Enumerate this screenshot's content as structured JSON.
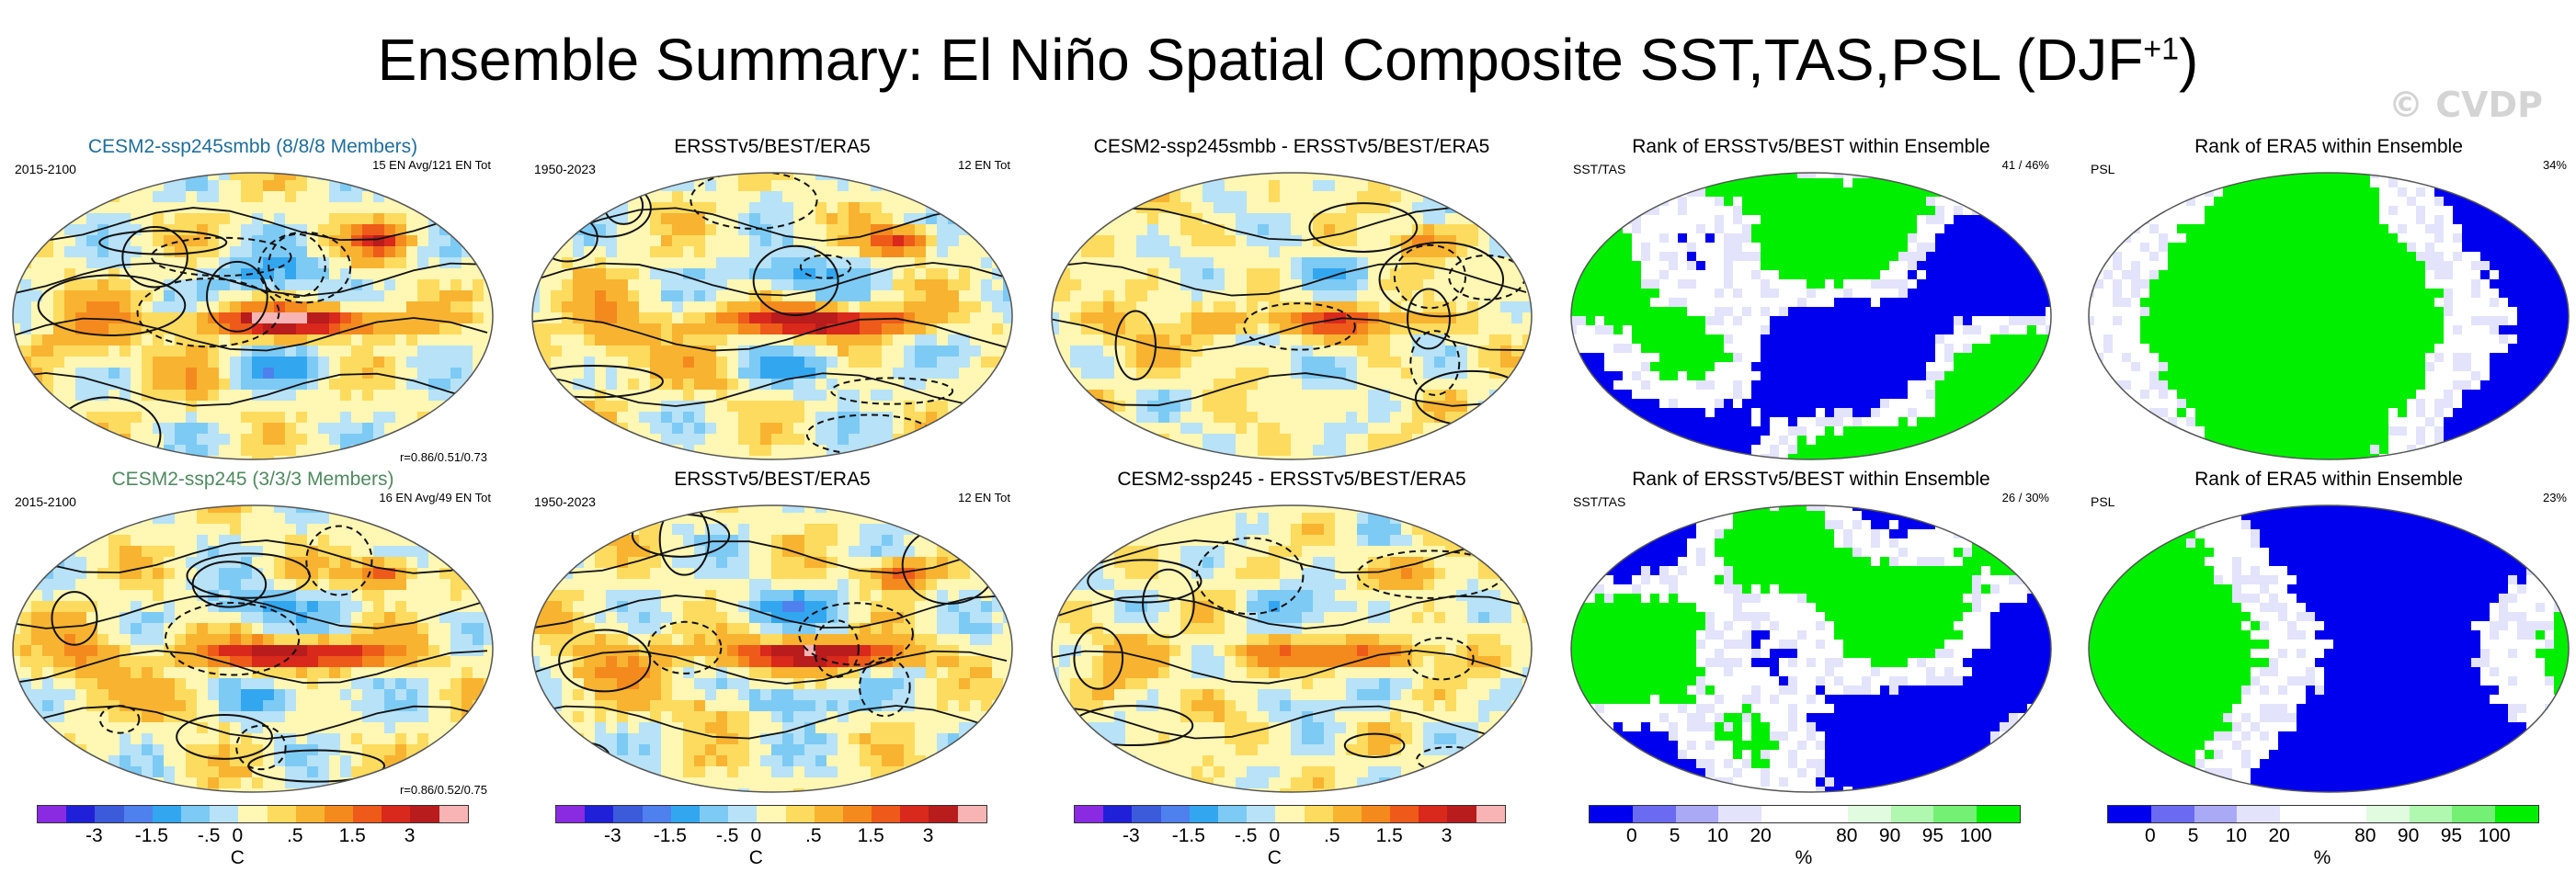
{
  "title_main": "Ensemble Summary: El Niño Spatial Composite SST,TAS,PSL (DJF",
  "title_sup": "+1",
  "title_end": ")",
  "watermark": "© CVDP",
  "panels": [
    {
      "title": "CESM2-ssp245smbb (8/8/8 Members)",
      "title_color": "#1f6e9c",
      "left": "2015-2100",
      "right": "15 EN Avg/121 EN Tot",
      "corr": "r=0.86/0.51/0.73",
      "type": "sst",
      "pal_seed": 1
    },
    {
      "title": "ERSSTv5/BEST/ERA5",
      "title_color": "#000000",
      "left": "1950-2023",
      "right": "12 EN Tot",
      "corr": "",
      "type": "sst",
      "pal_seed": 2
    },
    {
      "title": "CESM2-ssp245smbb - ERSSTv5/BEST/ERA5",
      "title_color": "#000000",
      "left": "",
      "right": "",
      "corr": "",
      "type": "diff",
      "pal_seed": 3
    },
    {
      "title": "Rank of ERSSTv5/BEST within Ensemble",
      "title_color": "#000000",
      "left": "SST/TAS",
      "right": "41 /  46%",
      "corr": "",
      "type": "rank",
      "pal_seed": 4
    },
    {
      "title": "Rank of ERA5 within Ensemble",
      "title_color": "#000000",
      "left": "PSL",
      "right": "34%",
      "corr": "",
      "type": "rankpsl",
      "pal_seed": 5
    },
    {
      "title": "CESM2-ssp245 (3/3/3 Members)",
      "title_color": "#4f8a5f",
      "left": "2015-2100",
      "right": "16 EN Avg/49 EN Tot",
      "corr": "r=0.86/0.52/0.75",
      "type": "sst",
      "pal_seed": 6
    },
    {
      "title": "ERSSTv5/BEST/ERA5",
      "title_color": "#000000",
      "left": "1950-2023",
      "right": "12 EN Tot",
      "corr": "",
      "type": "sst",
      "pal_seed": 7
    },
    {
      "title": "CESM2-ssp245 - ERSSTv5/BEST/ERA5",
      "title_color": "#000000",
      "left": "",
      "right": "",
      "corr": "",
      "type": "diff",
      "pal_seed": 8
    },
    {
      "title": "Rank of ERSSTv5/BEST within Ensemble",
      "title_color": "#000000",
      "left": "SST/TAS",
      "right": "26 /  30%",
      "corr": "",
      "type": "rank",
      "pal_seed": 9
    },
    {
      "title": "Rank of ERA5 within Ensemble",
      "title_color": "#000000",
      "left": "PSL",
      "right": "23%",
      "corr": "",
      "type": "rankpsl",
      "pal_seed": 10
    }
  ],
  "colorbars": [
    {
      "unit": "C",
      "ticks": [
        "-3",
        "-1.5",
        "-.5",
        "0",
        ".5",
        "1.5",
        "3"
      ],
      "colors": [
        "#8a2be2",
        "#2020d8",
        "#3b5bdb",
        "#4e80ee",
        "#33a6f0",
        "#7dcaf5",
        "#b7e2f7",
        "#fff7b3",
        "#fddb5e",
        "#f8b331",
        "#f48a1e",
        "#ee5a1a",
        "#d9281c",
        "#b81c1c",
        "#f8b4b4"
      ]
    },
    {
      "unit": "C",
      "ticks": [
        "-3",
        "-1.5",
        "-.5",
        "0",
        ".5",
        "1.5",
        "3"
      ],
      "colors": [
        "#8a2be2",
        "#2020d8",
        "#3b5bdb",
        "#4e80ee",
        "#33a6f0",
        "#7dcaf5",
        "#b7e2f7",
        "#fff7b3",
        "#fddb5e",
        "#f8b331",
        "#f48a1e",
        "#ee5a1a",
        "#d9281c",
        "#b81c1c",
        "#f8b4b4"
      ]
    },
    {
      "unit": "C",
      "ticks": [
        "-3",
        "-1.5",
        "-.5",
        "0",
        ".5",
        "1.5",
        "3"
      ],
      "colors": [
        "#8a2be2",
        "#2020d8",
        "#3b5bdb",
        "#4e80ee",
        "#33a6f0",
        "#7dcaf5",
        "#b7e2f7",
        "#fff7b3",
        "#fddb5e",
        "#f8b331",
        "#f48a1e",
        "#ee5a1a",
        "#d9281c",
        "#b81c1c",
        "#f8b4b4"
      ]
    },
    {
      "unit": "%",
      "ticks": [
        "0",
        "5",
        "10",
        "20",
        "80",
        "90",
        "95",
        "100"
      ],
      "colors": [
        "#0000ee",
        "#6b6bf2",
        "#a9a9f6",
        "#e3e3fb",
        "#ffffff",
        "#ffffff",
        "#e0fbe0",
        "#b0f7b0",
        "#74f074",
        "#00ee00"
      ]
    },
    {
      "unit": "%",
      "ticks": [
        "0",
        "5",
        "10",
        "20",
        "80",
        "90",
        "95",
        "100"
      ],
      "colors": [
        "#0000ee",
        "#6b6bf2",
        "#a9a9f6",
        "#e3e3fb",
        "#ffffff",
        "#ffffff",
        "#e0fbe0",
        "#b0f7b0",
        "#74f074",
        "#00ee00"
      ]
    }
  ],
  "chart_data": {
    "type": "heatmap",
    "title": "Ensemble Summary: El Niño Spatial Composite SST,TAS,PSL (DJF+1)",
    "panels": [
      {
        "title": "CESM2-ssp245smbb (8/8/8 Members)",
        "period": "2015-2100",
        "note": "15 EN Avg/121 EN Tot",
        "pattern_correlation": "r=0.86/0.51/0.73",
        "units": "C"
      },
      {
        "title": "ERSSTv5/BEST/ERA5",
        "period": "1950-2023",
        "note": "12 EN Tot",
        "units": "C"
      },
      {
        "title": "CESM2-ssp245smbb - ERSSTv5/BEST/ERA5",
        "units": "C"
      },
      {
        "title": "Rank of ERSSTv5/BEST within Ensemble",
        "variable": "SST/TAS",
        "note": "41 /  46%",
        "units": "%"
      },
      {
        "title": "Rank of ERA5 within Ensemble",
        "variable": "PSL",
        "note": "34%",
        "units": "%"
      },
      {
        "title": "CESM2-ssp245 (3/3/3 Members)",
        "period": "2015-2100",
        "note": "16 EN Avg/49 EN Tot",
        "pattern_correlation": "r=0.86/0.52/0.75",
        "units": "C"
      },
      {
        "title": "ERSSTv5/BEST/ERA5",
        "period": "1950-2023",
        "note": "12 EN Tot",
        "units": "C"
      },
      {
        "title": "CESM2-ssp245 - ERSSTv5/BEST/ERA5",
        "units": "C"
      },
      {
        "title": "Rank of ERSSTv5/BEST within Ensemble",
        "variable": "SST/TAS",
        "note": "26 /  30%",
        "units": "%"
      },
      {
        "title": "Rank of ERA5 within Ensemble",
        "variable": "PSL",
        "note": "23%",
        "units": "%"
      }
    ],
    "temperature_scale_C": [
      -3,
      -1.5,
      -0.5,
      0,
      0.5,
      1.5,
      3
    ],
    "rank_scale_percent": [
      0,
      5,
      10,
      20,
      80,
      90,
      95,
      100
    ]
  }
}
